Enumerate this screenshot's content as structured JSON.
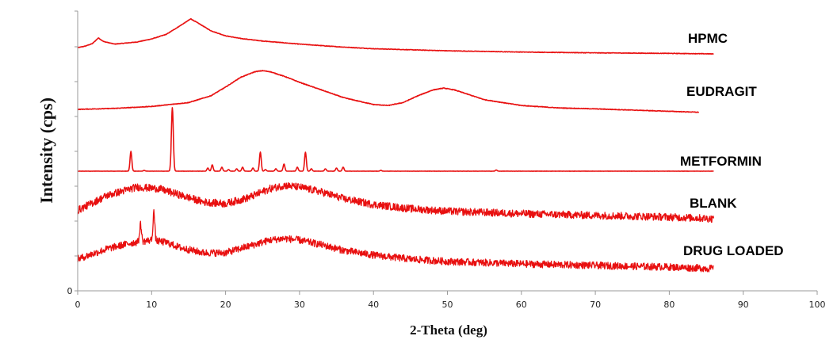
{
  "chart_data": {
    "type": "line",
    "title": "",
    "xlabel": "2-Theta (deg)",
    "ylabel": "Intensity (cps)",
    "xlim": [
      0,
      100
    ],
    "x_ticks": [
      0,
      10,
      20,
      30,
      40,
      50,
      60,
      70,
      80,
      90,
      100
    ],
    "y_ticks": [
      "0"
    ],
    "grid": false,
    "color": "#e81010",
    "series": [
      {
        "name": "HPMC",
        "x_range": [
          0,
          86
        ],
        "noise": 0.0025,
        "points": [
          [
            0,
            0.06
          ],
          [
            1,
            0.075
          ],
          [
            2,
            0.1
          ],
          [
            2.8,
            0.155
          ],
          [
            3.5,
            0.12
          ],
          [
            5,
            0.095
          ],
          [
            8,
            0.115
          ],
          [
            10,
            0.145
          ],
          [
            12,
            0.19
          ],
          [
            14,
            0.28
          ],
          [
            15.3,
            0.34
          ],
          [
            16.5,
            0.29
          ],
          [
            18,
            0.225
          ],
          [
            20,
            0.175
          ],
          [
            22,
            0.15
          ],
          [
            25,
            0.125
          ],
          [
            30,
            0.095
          ],
          [
            35,
            0.07
          ],
          [
            40,
            0.05
          ],
          [
            50,
            0.03
          ],
          [
            60,
            0.018
          ],
          [
            70,
            0.01
          ],
          [
            80,
            0.005
          ],
          [
            86,
            0.0
          ]
        ]
      },
      {
        "name": "EUDRAGIT",
        "x_range": [
          0,
          84
        ],
        "noise": 0.003,
        "points": [
          [
            0,
            0.0
          ],
          [
            5,
            0.01
          ],
          [
            10,
            0.03
          ],
          [
            15,
            0.07
          ],
          [
            18,
            0.14
          ],
          [
            20,
            0.23
          ],
          [
            22,
            0.33
          ],
          [
            24,
            0.39
          ],
          [
            25,
            0.4
          ],
          [
            26,
            0.39
          ],
          [
            28,
            0.34
          ],
          [
            30,
            0.28
          ],
          [
            33,
            0.2
          ],
          [
            36,
            0.12
          ],
          [
            40,
            0.05
          ],
          [
            42,
            0.04
          ],
          [
            44,
            0.07
          ],
          [
            46,
            0.14
          ],
          [
            48,
            0.2
          ],
          [
            49.5,
            0.22
          ],
          [
            51,
            0.2
          ],
          [
            53,
            0.15
          ],
          [
            55,
            0.1
          ],
          [
            60,
            0.04
          ],
          [
            65,
            0.015
          ],
          [
            70,
            0.005
          ],
          [
            84,
            -0.03
          ]
        ]
      },
      {
        "name": "METFORMIN",
        "x_range": [
          0,
          86
        ],
        "noise": 0.0008,
        "points": [
          [
            0,
            0.0
          ],
          [
            86,
            0.0
          ]
        ],
        "peaks": [
          [
            7.2,
            0.25
          ],
          [
            9.0,
            0.01
          ],
          [
            12.8,
            0.8
          ],
          [
            17.6,
            0.04
          ],
          [
            18.2,
            0.08
          ],
          [
            19.5,
            0.05
          ],
          [
            20.4,
            0.02
          ],
          [
            21.5,
            0.03
          ],
          [
            22.3,
            0.05
          ],
          [
            23.7,
            0.04
          ],
          [
            24.7,
            0.24
          ],
          [
            25.4,
            0.02
          ],
          [
            26.8,
            0.03
          ],
          [
            27.9,
            0.09
          ],
          [
            29.7,
            0.05
          ],
          [
            30.8,
            0.24
          ],
          [
            31.6,
            0.03
          ],
          [
            33.5,
            0.03
          ],
          [
            35.0,
            0.04
          ],
          [
            35.9,
            0.05
          ],
          [
            41.0,
            0.01
          ],
          [
            56.6,
            0.015
          ]
        ]
      },
      {
        "name": "BLANK",
        "x_range": [
          0,
          86
        ],
        "noise": 0.045,
        "points": [
          [
            0,
            0.1
          ],
          [
            4,
            0.28
          ],
          [
            8,
            0.38
          ],
          [
            11,
            0.36
          ],
          [
            14,
            0.28
          ],
          [
            17,
            0.2
          ],
          [
            20,
            0.18
          ],
          [
            23,
            0.25
          ],
          [
            26,
            0.36
          ],
          [
            28,
            0.4
          ],
          [
            30,
            0.38
          ],
          [
            33,
            0.32
          ],
          [
            36,
            0.24
          ],
          [
            40,
            0.17
          ],
          [
            45,
            0.12
          ],
          [
            50,
            0.09
          ],
          [
            60,
            0.06
          ],
          [
            70,
            0.04
          ],
          [
            80,
            0.02
          ],
          [
            86,
            0.0
          ]
        ]
      },
      {
        "name": "DRUG LOADED",
        "x_range": [
          0,
          86
        ],
        "noise": 0.045,
        "points": [
          [
            0,
            0.12
          ],
          [
            4,
            0.25
          ],
          [
            7,
            0.32
          ],
          [
            10,
            0.36
          ],
          [
            12,
            0.33
          ],
          [
            14,
            0.26
          ],
          [
            17,
            0.2
          ],
          [
            20,
            0.2
          ],
          [
            23,
            0.28
          ],
          [
            26,
            0.36
          ],
          [
            28,
            0.38
          ],
          [
            30,
            0.36
          ],
          [
            33,
            0.3
          ],
          [
            36,
            0.23
          ],
          [
            40,
            0.17
          ],
          [
            45,
            0.12
          ],
          [
            50,
            0.09
          ],
          [
            60,
            0.06
          ],
          [
            70,
            0.04
          ],
          [
            80,
            0.02
          ],
          [
            86,
            0.0
          ]
        ],
        "peaks": [
          [
            8.5,
            0.22
          ],
          [
            10.3,
            0.36
          ]
        ]
      }
    ]
  }
}
